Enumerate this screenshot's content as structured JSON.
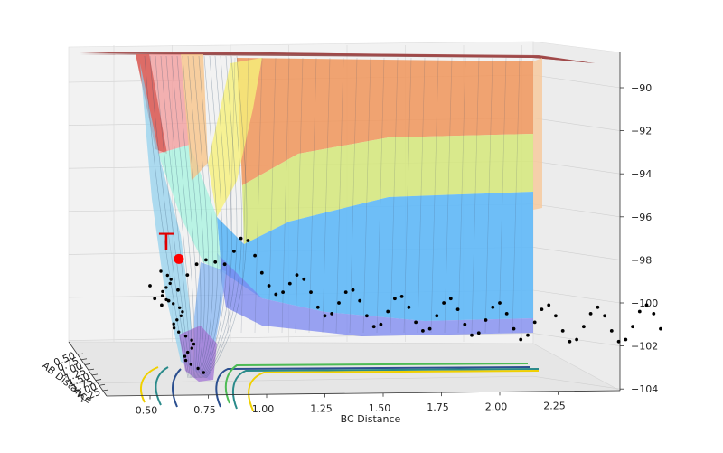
{
  "chart_data": {
    "type": "surface3d",
    "title": "",
    "xlabel": "BC Distance",
    "ylabel": "AB Distance",
    "zlabel": "",
    "x_ticks": [
      "0.50",
      "0.75",
      "1.00",
      "1.25",
      "1.50",
      "1.75",
      "2.00",
      "2.25"
    ],
    "y_ticks": [
      "0.50",
      "0.75",
      "1.00",
      "1.25",
      "1.50",
      "1.75",
      "2.00",
      "2.25"
    ],
    "z_ticks": [
      "−90",
      "−92",
      "−94",
      "−96",
      "−98",
      "−100",
      "−102",
      "−104"
    ],
    "xlim": [
      0.35,
      2.4
    ],
    "ylim": [
      0.45,
      2.3
    ],
    "zlim": [
      -104.2,
      -88.5
    ],
    "grid": true,
    "colormap": "jet",
    "energy_plateau": -89.2,
    "well_minimum": -104.0,
    "transition_state": {
      "label": "T",
      "bc": 0.74,
      "ab": 0.74,
      "energy": -98.0,
      "color": "#ff0000"
    },
    "trajectory": {
      "color": "#000000",
      "points": [
        {
          "bc": 0.5,
          "e": -99.2
        },
        {
          "bc": 0.52,
          "e": -99.8
        },
        {
          "bc": 0.55,
          "e": -100.1
        },
        {
          "bc": 0.58,
          "e": -99.9
        },
        {
          "bc": 0.62,
          "e": -99.4
        },
        {
          "bc": 0.66,
          "e": -98.7
        },
        {
          "bc": 0.7,
          "e": -98.2
        },
        {
          "bc": 0.74,
          "e": -98.0
        },
        {
          "bc": 0.78,
          "e": -98.1
        },
        {
          "bc": 0.82,
          "e": -98.2
        },
        {
          "bc": 0.86,
          "e": -97.6
        },
        {
          "bc": 0.89,
          "e": -97.0
        },
        {
          "bc": 0.92,
          "e": -97.1
        },
        {
          "bc": 0.95,
          "e": -97.8
        },
        {
          "bc": 0.98,
          "e": -98.6
        },
        {
          "bc": 1.01,
          "e": -99.2
        },
        {
          "bc": 1.04,
          "e": -99.6
        },
        {
          "bc": 1.07,
          "e": -99.5
        },
        {
          "bc": 1.1,
          "e": -99.1
        },
        {
          "bc": 1.13,
          "e": -98.7
        },
        {
          "bc": 1.16,
          "e": -98.9
        },
        {
          "bc": 1.19,
          "e": -99.5
        },
        {
          "bc": 1.22,
          "e": -100.2
        },
        {
          "bc": 1.25,
          "e": -100.6
        },
        {
          "bc": 1.28,
          "e": -100.5
        },
        {
          "bc": 1.31,
          "e": -100.0
        },
        {
          "bc": 1.34,
          "e": -99.5
        },
        {
          "bc": 1.37,
          "e": -99.4
        },
        {
          "bc": 1.4,
          "e": -99.9
        },
        {
          "bc": 1.43,
          "e": -100.6
        },
        {
          "bc": 1.46,
          "e": -101.1
        },
        {
          "bc": 1.49,
          "e": -101.0
        },
        {
          "bc": 1.52,
          "e": -100.4
        },
        {
          "bc": 1.55,
          "e": -99.8
        },
        {
          "bc": 1.58,
          "e": -99.7
        },
        {
          "bc": 1.61,
          "e": -100.2
        },
        {
          "bc": 1.64,
          "e": -100.9
        },
        {
          "bc": 1.67,
          "e": -101.3
        },
        {
          "bc": 1.7,
          "e": -101.2
        },
        {
          "bc": 1.73,
          "e": -100.6
        },
        {
          "bc": 1.76,
          "e": -100.0
        },
        {
          "bc": 1.79,
          "e": -99.8
        },
        {
          "bc": 1.82,
          "e": -100.3
        },
        {
          "bc": 1.85,
          "e": -101.0
        },
        {
          "bc": 1.88,
          "e": -101.5
        },
        {
          "bc": 1.91,
          "e": -101.4
        },
        {
          "bc": 1.94,
          "e": -100.8
        },
        {
          "bc": 1.97,
          "e": -100.2
        },
        {
          "bc": 2.0,
          "e": -100.0
        },
        {
          "bc": 2.03,
          "e": -100.5
        },
        {
          "bc": 2.06,
          "e": -101.2
        },
        {
          "bc": 2.09,
          "e": -101.7
        },
        {
          "bc": 2.12,
          "e": -101.5
        },
        {
          "bc": 2.15,
          "e": -100.9
        },
        {
          "bc": 2.18,
          "e": -100.3
        },
        {
          "bc": 2.21,
          "e": -100.1
        },
        {
          "bc": 2.24,
          "e": -100.6
        },
        {
          "bc": 2.27,
          "e": -101.3
        },
        {
          "bc": 2.3,
          "e": -101.8
        },
        {
          "bc": 2.33,
          "e": -101.7
        },
        {
          "bc": 2.36,
          "e": -101.1
        },
        {
          "bc": 2.39,
          "e": -100.5
        },
        {
          "bc": 2.42,
          "e": -100.2
        },
        {
          "bc": 2.45,
          "e": -100.6
        },
        {
          "bc": 2.48,
          "e": -101.3
        },
        {
          "bc": 2.51,
          "e": -101.8
        },
        {
          "bc": 2.54,
          "e": -101.7
        },
        {
          "bc": 2.57,
          "e": -101.1
        },
        {
          "bc": 2.6,
          "e": -100.4
        },
        {
          "bc": 2.63,
          "e": -100.1
        },
        {
          "bc": 2.66,
          "e": -100.5
        },
        {
          "bc": 2.69,
          "e": -101.2
        }
      ]
    }
  }
}
